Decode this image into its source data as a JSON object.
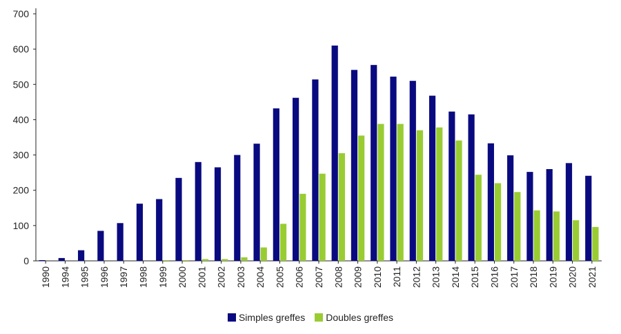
{
  "chart_data": {
    "type": "bar",
    "categories": [
      "1990",
      "1994",
      "1995",
      "1996",
      "1997",
      "1998",
      "1999",
      "2000",
      "2001",
      "2002",
      "2003",
      "2004",
      "2005",
      "2006",
      "2007",
      "2008",
      "2009",
      "2010",
      "2011",
      "2012",
      "2013",
      "2014",
      "2015",
      "2016",
      "2017",
      "2018",
      "2019",
      "2020",
      "2021"
    ],
    "series": [
      {
        "name": "Simples greffes",
        "color": "#0a0a80",
        "values": [
          2,
          8,
          30,
          85,
          107,
          162,
          175,
          235,
          280,
          265,
          300,
          332,
          432,
          462,
          514,
          610,
          541,
          555,
          522,
          510,
          468,
          423,
          415,
          333,
          299,
          252,
          260,
          277,
          241
        ]
      },
      {
        "name": "Doubles greffes",
        "color": "#99cc33",
        "values": [
          0,
          0,
          0,
          0,
          0,
          0,
          2,
          2,
          5,
          5,
          10,
          38,
          105,
          190,
          247,
          305,
          355,
          388,
          388,
          370,
          378,
          341,
          244,
          220,
          195,
          143,
          140,
          115,
          96
        ]
      }
    ],
    "ylim": [
      0,
      700
    ],
    "yticks": [
      "0",
      "100",
      "200",
      "300",
      "400",
      "500",
      "600",
      "700"
    ],
    "grid": false,
    "legend_position": "bottom"
  }
}
